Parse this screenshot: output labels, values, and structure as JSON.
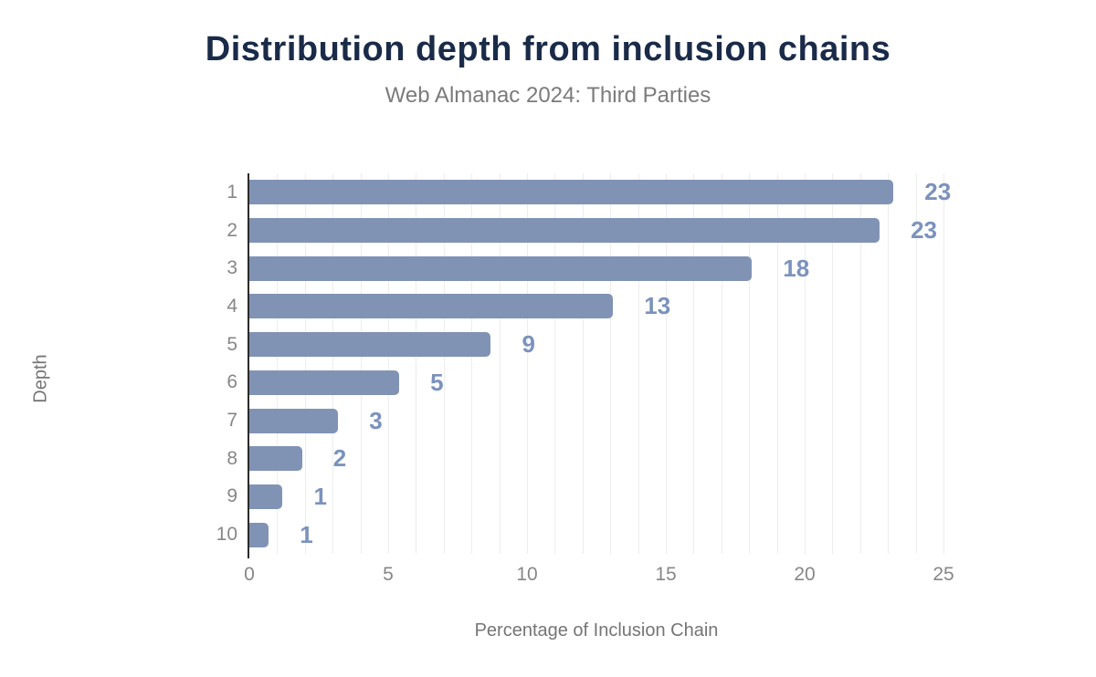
{
  "header": {
    "title": "Distribution depth from inclusion chains",
    "subtitle": "Web Almanac 2024: Third Parties"
  },
  "chart_data": {
    "type": "bar",
    "orientation": "horizontal",
    "title": "Distribution depth from inclusion chains",
    "subtitle": "Web Almanac 2024: Third Parties",
    "categories": [
      "1",
      "2",
      "3",
      "4",
      "5",
      "6",
      "7",
      "8",
      "9",
      "10"
    ],
    "values": [
      23.2,
      22.7,
      18.1,
      13.1,
      8.7,
      5.4,
      3.2,
      1.9,
      1.2,
      0.7
    ],
    "value_labels": [
      "23",
      "23",
      "18",
      "13",
      "9",
      "5",
      "3",
      "2",
      "1",
      "1"
    ],
    "xlabel": "Percentage of Inclusion Chain",
    "ylabel": "Depth",
    "xlim": [
      0,
      25
    ],
    "xticks": [
      0,
      5,
      10,
      15,
      20,
      25
    ],
    "grid": "vertical gridlines every 1 unit, from 0 to 25",
    "legend": "none",
    "colors": {
      "bar": "#8093b5",
      "value_label": "#7b92bd",
      "title": "#1a2b49",
      "subtitle": "#7b7b7b",
      "axis_text": "#878787",
      "axis_line": "#2b2b2b",
      "gridline": "#ededed",
      "background": "#ffffff"
    }
  }
}
